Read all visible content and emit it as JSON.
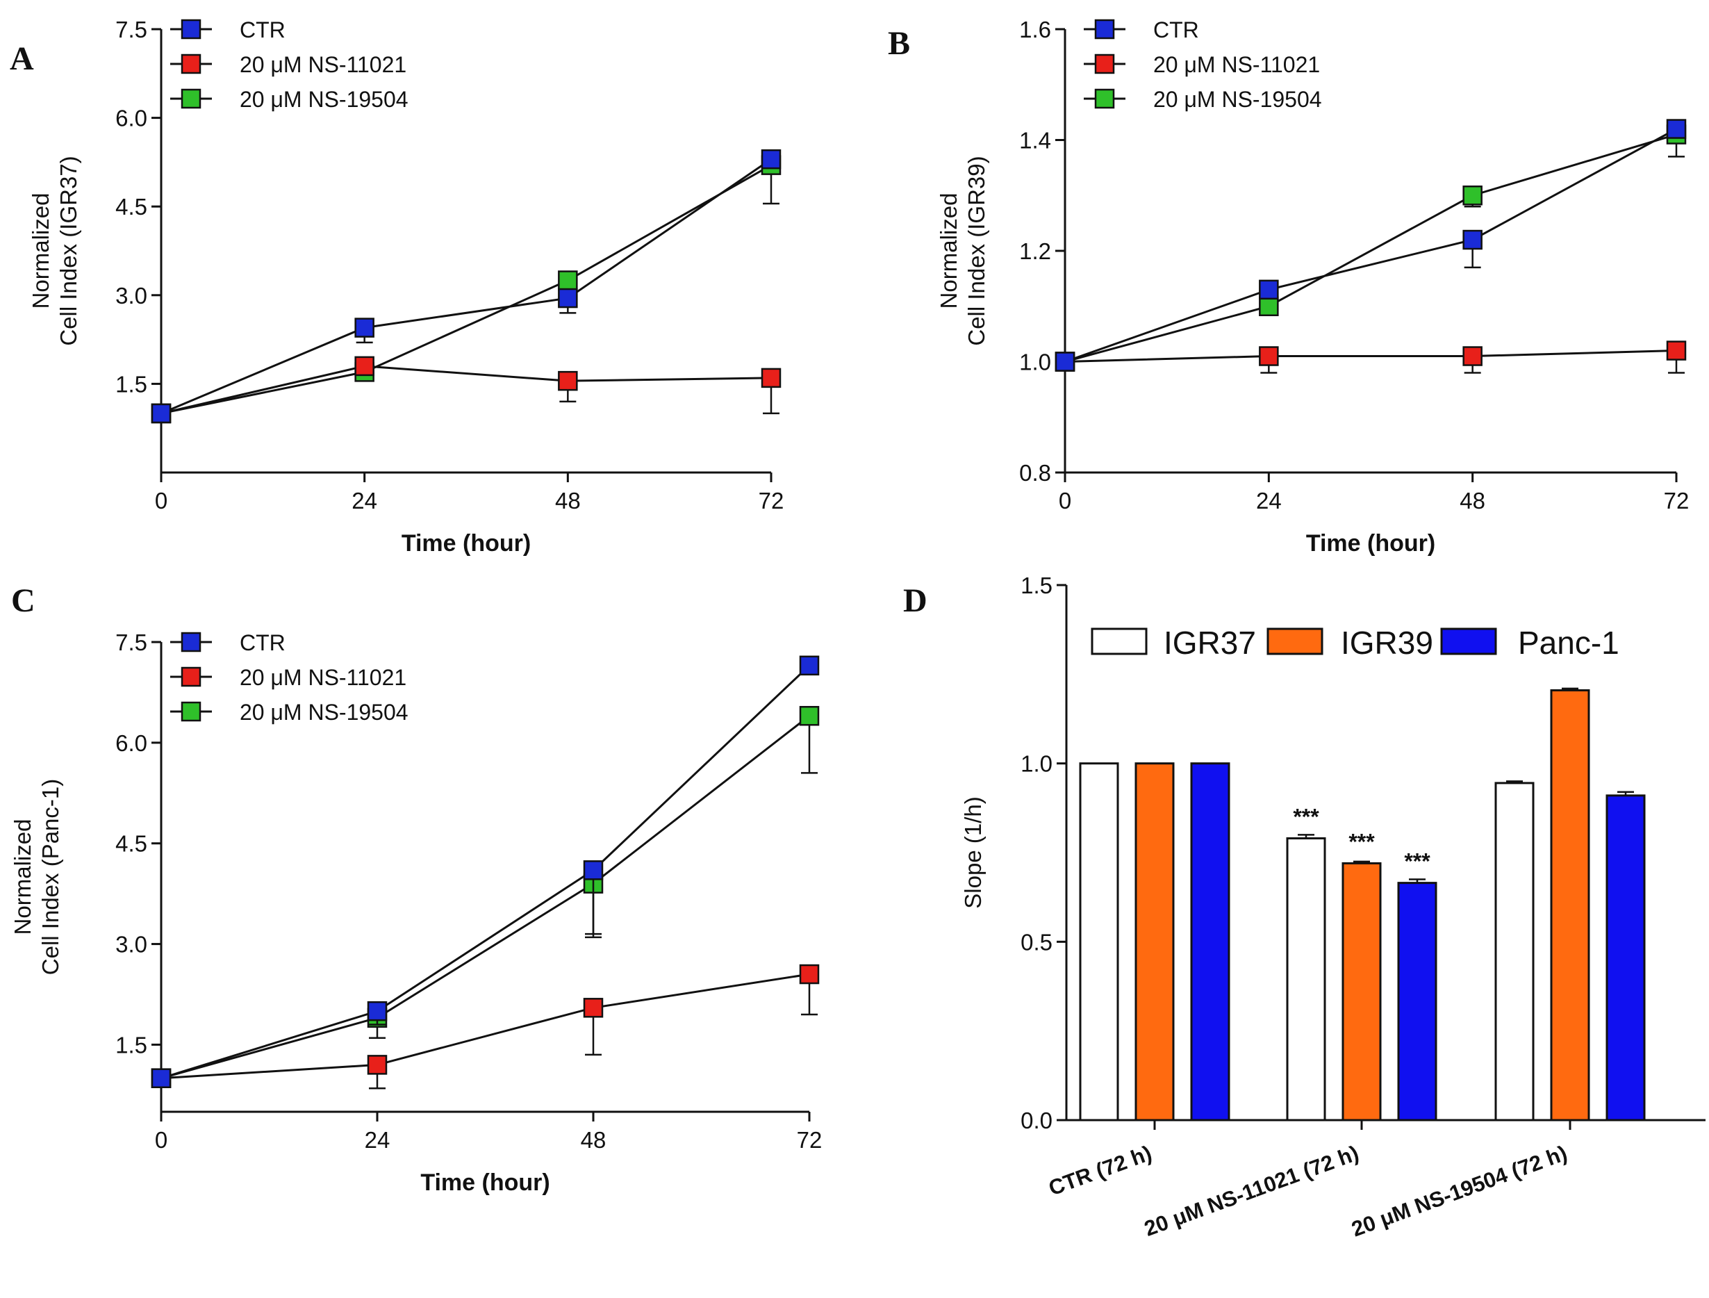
{
  "colors": {
    "ctr": "#1a2bd6",
    "ns11021": "#e8201a",
    "ns19504": "#2fc02a",
    "igr37": "#ffffff",
    "igr39": "#ff6a10",
    "panc1": "#1010f0"
  },
  "chart_data": [
    {
      "panel": "A",
      "type": "line",
      "xlabel": "Time (hour)",
      "ylabel": [
        "Normalized",
        "Cell Index (IGR37)"
      ],
      "x": [
        0,
        24,
        48,
        72
      ],
      "xticks": [
        "0",
        "24",
        "48",
        "72"
      ],
      "ylim": [
        0,
        7.5
      ],
      "yticks": [
        "1.5",
        "3.0",
        "4.5",
        "6.0",
        "7.5"
      ],
      "legend": [
        "CTR",
        "20 μM NS-11021",
        "20 μM NS-19504"
      ],
      "series": [
        {
          "name": "CTR",
          "color_key": "ctr",
          "values": [
            1.0,
            2.45,
            2.95,
            5.3
          ],
          "err": [
            0,
            0.25,
            0.25,
            0.05
          ]
        },
        {
          "name": "20 μM NS-11021",
          "color_key": "ns11021",
          "values": [
            1.0,
            1.8,
            1.55,
            1.6
          ],
          "err": [
            0,
            0.15,
            0.35,
            0.6
          ]
        },
        {
          "name": "20 μM NS-19504",
          "color_key": "ns19504",
          "values": [
            1.0,
            1.7,
            3.25,
            5.2
          ],
          "err": [
            0,
            0.1,
            0.1,
            0.65
          ]
        }
      ]
    },
    {
      "panel": "B",
      "type": "line",
      "xlabel": "Time (hour)",
      "ylabel": [
        "Normalized",
        "Cell Index (IGR39)"
      ],
      "x": [
        0,
        24,
        48,
        72
      ],
      "xticks": [
        "0",
        "24",
        "48",
        "72"
      ],
      "ylim": [
        0.8,
        1.6
      ],
      "yticks": [
        "0.8",
        "1.0",
        "1.2",
        "1.4",
        "1.6"
      ],
      "legend": [
        "CTR",
        "20 μM NS-11021",
        "20 μM NS-19504"
      ],
      "series": [
        {
          "name": "CTR",
          "color_key": "ctr",
          "values": [
            1.0,
            1.13,
            1.22,
            1.42
          ],
          "err": [
            0,
            0.01,
            0.05,
            0.01
          ]
        },
        {
          "name": "20 μM NS-11021",
          "color_key": "ns11021",
          "values": [
            1.0,
            1.01,
            1.01,
            1.02
          ],
          "err": [
            0,
            0.03,
            0.03,
            0.04
          ]
        },
        {
          "name": "20 μM NS-19504",
          "color_key": "ns19504",
          "values": [
            1.0,
            1.1,
            1.3,
            1.41
          ],
          "err": [
            0,
            0.01,
            0.02,
            0.04
          ]
        }
      ]
    },
    {
      "panel": "C",
      "type": "line",
      "xlabel": "Time (hour)",
      "ylabel": [
        "Normalized",
        "Cell Index (Panc-1)"
      ],
      "x": [
        0,
        24,
        48,
        72
      ],
      "xticks": [
        "0",
        "24",
        "48",
        "72"
      ],
      "ylim": [
        0.5,
        7.5
      ],
      "yticks": [
        "1.5",
        "3.0",
        "4.5",
        "6.0",
        "7.5"
      ],
      "legend": [
        "CTR",
        "20 μM NS-11021",
        "20 μM NS-19504"
      ],
      "series": [
        {
          "name": "CTR",
          "color_key": "ctr",
          "values": [
            1.0,
            2.0,
            4.1,
            7.15
          ],
          "err": [
            0,
            0.2,
            0.95,
            0.05
          ]
        },
        {
          "name": "20 μM NS-11021",
          "color_key": "ns11021",
          "values": [
            1.0,
            1.2,
            2.05,
            2.55
          ],
          "err": [
            0,
            0.35,
            0.7,
            0.6
          ]
        },
        {
          "name": "20 μM NS-19504",
          "color_key": "ns19504",
          "values": [
            1.0,
            1.9,
            3.9,
            6.4
          ],
          "err": [
            0,
            0.3,
            0.8,
            0.85
          ]
        }
      ]
    },
    {
      "panel": "D",
      "type": "bar",
      "ylabel": "Slope (1/h)",
      "ylim": [
        0,
        1.5
      ],
      "yticks": [
        "0.0",
        "0.5",
        "1.0",
        "1.5"
      ],
      "categories": [
        "CTR (72 h)",
        "20 μM NS-11021 (72 h)",
        "20 μM NS-19504 (72 h)"
      ],
      "legend": [
        "IGR37",
        "IGR39",
        "Panc-1"
      ],
      "significance": "***",
      "series": [
        {
          "name": "IGR37",
          "color_key": "igr37",
          "values": [
            1.0,
            0.79,
            0.945
          ],
          "err": [
            0,
            0.01,
            0.005
          ],
          "sig": [
            false,
            true,
            false
          ]
        },
        {
          "name": "IGR39",
          "color_key": "igr39",
          "values": [
            1.0,
            0.72,
            1.205
          ],
          "err": [
            0,
            0.005,
            0.005
          ],
          "sig": [
            false,
            true,
            false
          ]
        },
        {
          "name": "Panc-1",
          "color_key": "panc1",
          "values": [
            1.0,
            0.665,
            0.91
          ],
          "err": [
            0,
            0.01,
            0.01
          ],
          "sig": [
            false,
            true,
            false
          ]
        }
      ]
    }
  ]
}
